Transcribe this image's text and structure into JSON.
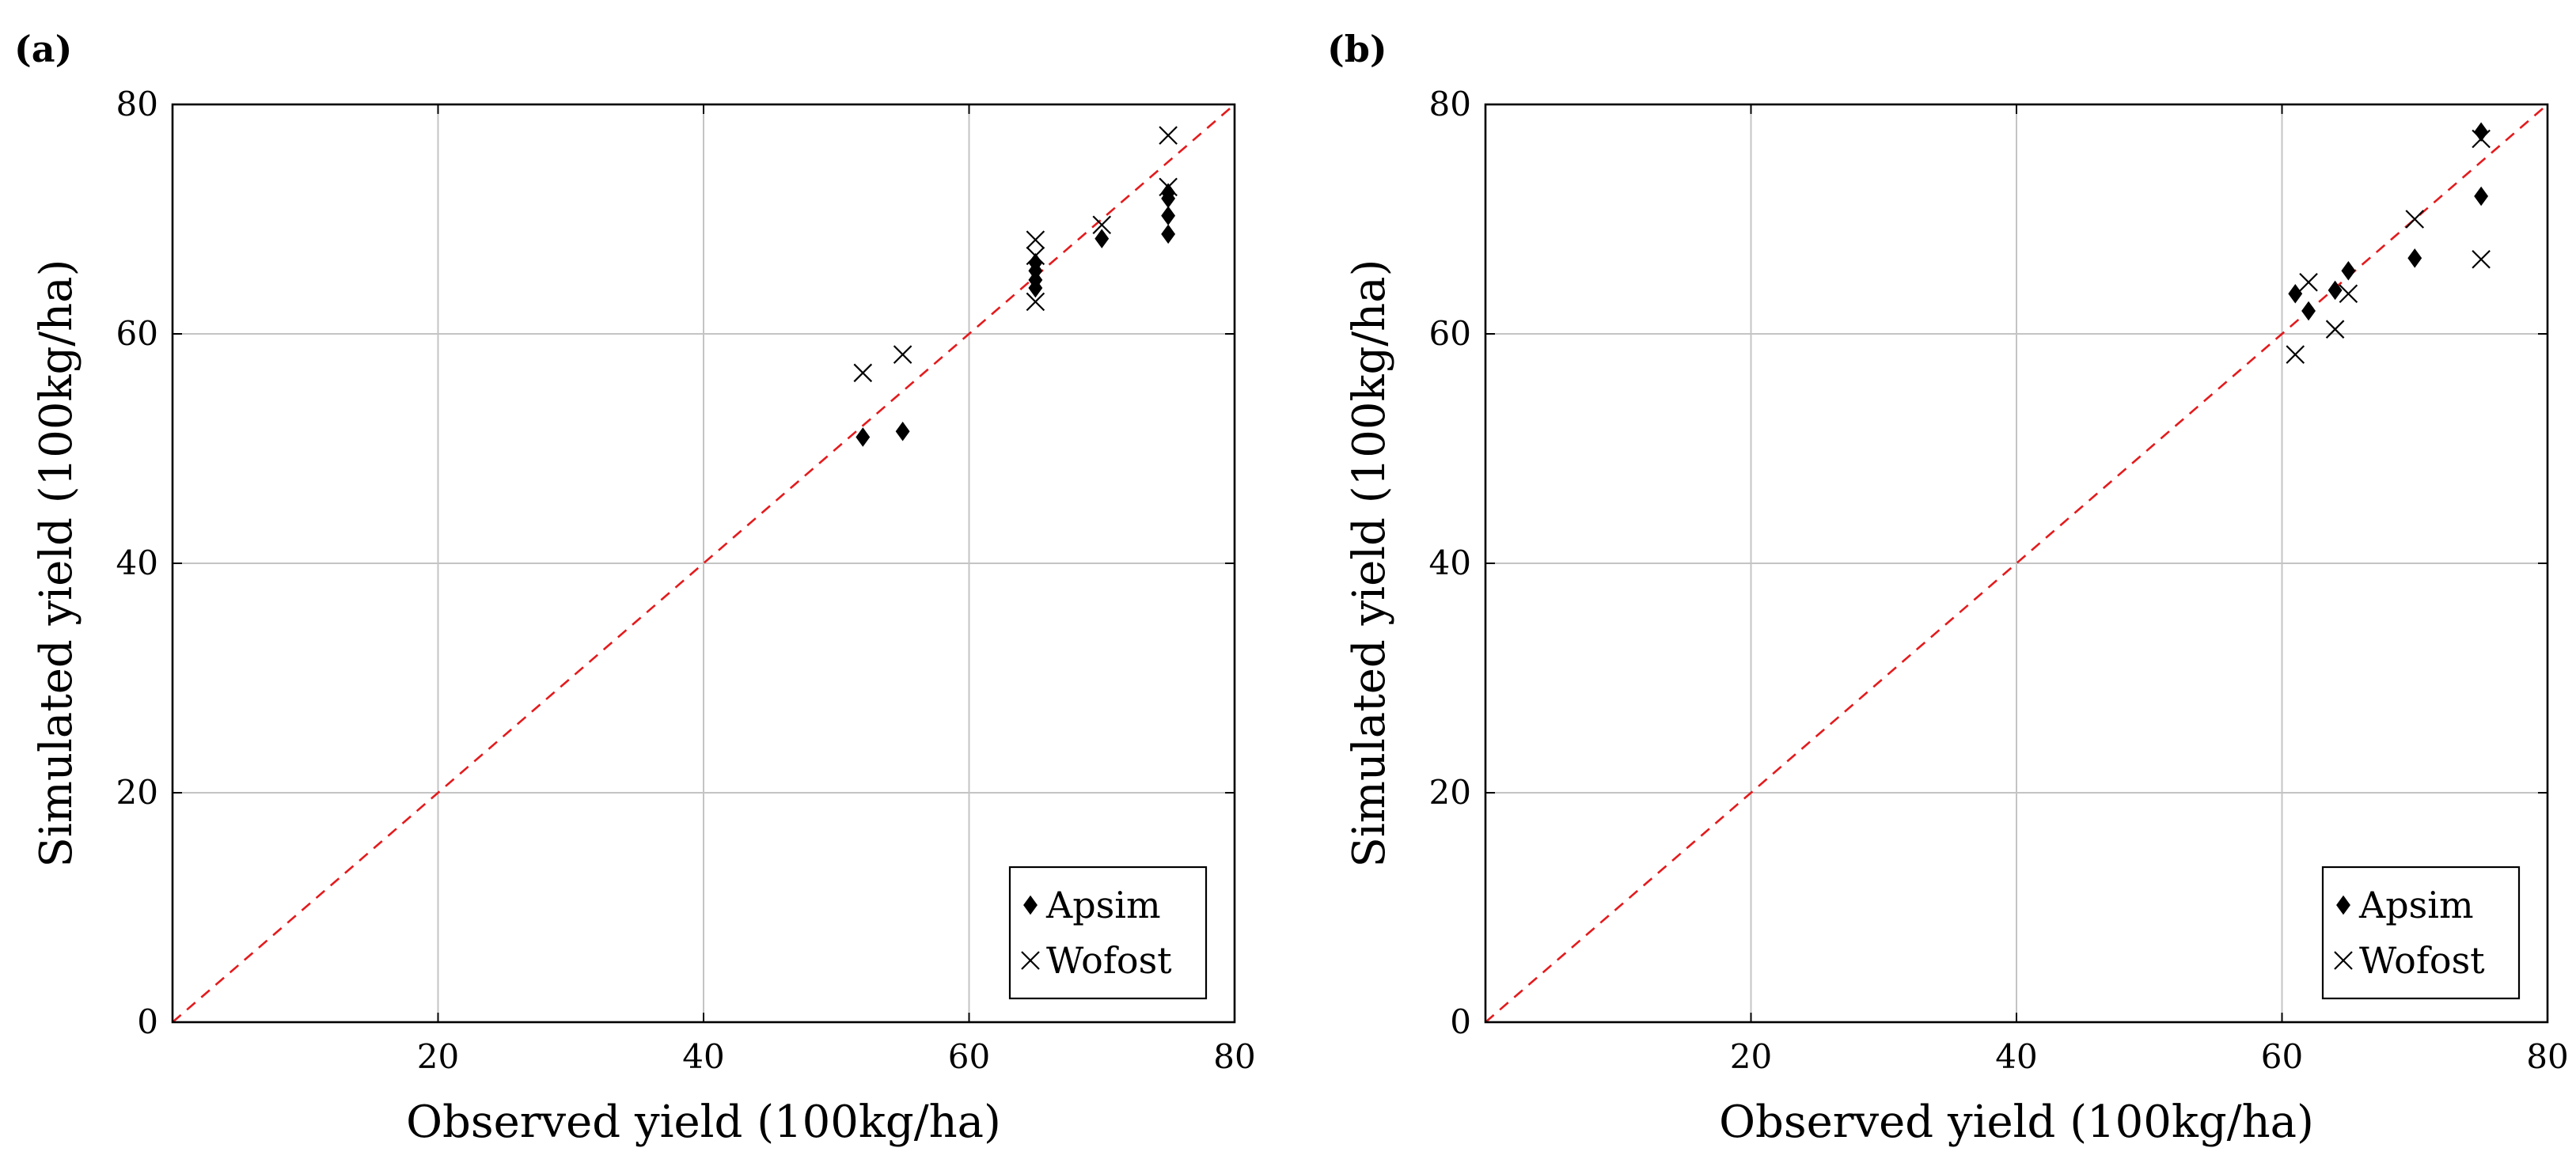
{
  "chart_data": [
    {
      "panel_label": "(a)",
      "type": "scatter",
      "xlabel": "Observed yield (100kg/ha)",
      "ylabel": "Simulated yield (100kg/ha)",
      "xlim": [
        0,
        80
      ],
      "ylim": [
        0,
        80
      ],
      "xticks": [
        20,
        40,
        60,
        80
      ],
      "yticks": [
        0,
        20,
        40,
        60,
        80
      ],
      "grid": true,
      "reference_line": "y = x",
      "legend_position": "bottom-right",
      "series": [
        {
          "name": "Apsim",
          "marker": "diamond",
          "points": [
            [
              52,
              51
            ],
            [
              55,
              51.5
            ],
            [
              65,
              64
            ],
            [
              65,
              64.7
            ],
            [
              65,
              65.5
            ],
            [
              65,
              66.2
            ],
            [
              70,
              68.3
            ],
            [
              75,
              68.7
            ],
            [
              75,
              70.3
            ],
            [
              75,
              71.8
            ],
            [
              75,
              72.3
            ]
          ]
        },
        {
          "name": "Wofost",
          "marker": "cross",
          "points": [
            [
              52,
              56.6
            ],
            [
              55,
              58.2
            ],
            [
              65,
              62.8
            ],
            [
              65,
              66.8
            ],
            [
              65,
              68.2
            ],
            [
              70,
              69.5
            ],
            [
              75,
              72.8
            ],
            [
              75,
              77.3
            ]
          ]
        }
      ]
    },
    {
      "panel_label": "(b)",
      "type": "scatter",
      "xlabel": "Observed yield (100kg/ha)",
      "ylabel": "Simulated yield (100kg/ha)",
      "xlim": [
        0,
        80
      ],
      "ylim": [
        0,
        80
      ],
      "xticks": [
        20,
        40,
        60,
        80
      ],
      "yticks": [
        0,
        20,
        40,
        60,
        80
      ],
      "grid": true,
      "reference_line": "y = x",
      "legend_position": "bottom-right",
      "series": [
        {
          "name": "Apsim",
          "marker": "diamond",
          "points": [
            [
              61,
              63.5
            ],
            [
              62,
              62
            ],
            [
              64,
              63.8
            ],
            [
              65,
              65.5
            ],
            [
              70,
              66.6
            ],
            [
              75,
              72
            ],
            [
              75,
              77.6
            ]
          ]
        },
        {
          "name": "Wofost",
          "marker": "cross",
          "points": [
            [
              61,
              58.2
            ],
            [
              62,
              64.5
            ],
            [
              64,
              60.4
            ],
            [
              65,
              63.5
            ],
            [
              70,
              70
            ],
            [
              75,
              66.5
            ],
            [
              75,
              77
            ]
          ]
        }
      ]
    }
  ]
}
